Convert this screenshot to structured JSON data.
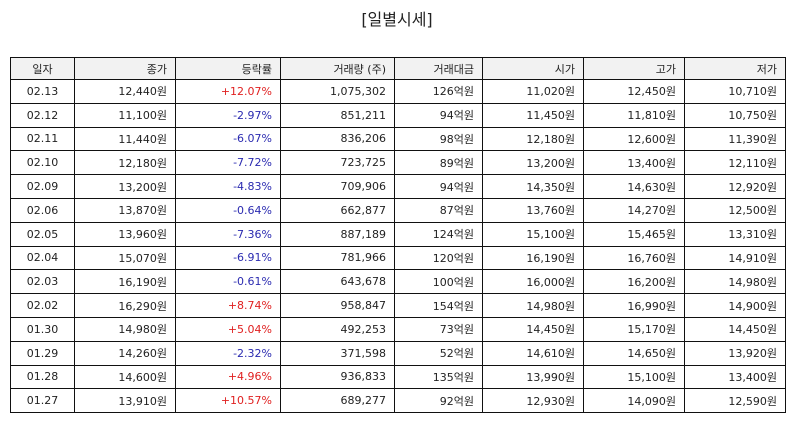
{
  "title": "[일별시세]",
  "table": {
    "headers": [
      "일자",
      "종가",
      "등락률",
      "거래량 (주)",
      "거래대금",
      "시가",
      "고가",
      "저가"
    ],
    "change_colors": {
      "up": "#e02020",
      "down": "#2a2ab0"
    },
    "rows": [
      [
        "02.13",
        "12,440원",
        "+12.07%",
        "1,075,302",
        "126억원",
        "11,020원",
        "12,450원",
        "10,710원"
      ],
      [
        "02.12",
        "11,100원",
        "-2.97%",
        "851,211",
        "94억원",
        "11,450원",
        "11,810원",
        "10,750원"
      ],
      [
        "02.11",
        "11,440원",
        "-6.07%",
        "836,206",
        "98억원",
        "12,180원",
        "12,600원",
        "11,390원"
      ],
      [
        "02.10",
        "12,180원",
        "-7.72%",
        "723,725",
        "89억원",
        "13,200원",
        "13,400원",
        "12,110원"
      ],
      [
        "02.09",
        "13,200원",
        "-4.83%",
        "709,906",
        "94억원",
        "14,350원",
        "14,630원",
        "12,920원"
      ],
      [
        "02.06",
        "13,870원",
        "-0.64%",
        "662,877",
        "87억원",
        "13,760원",
        "14,270원",
        "12,500원"
      ],
      [
        "02.05",
        "13,960원",
        "-7.36%",
        "887,189",
        "124억원",
        "15,100원",
        "15,465원",
        "13,310원"
      ],
      [
        "02.04",
        "15,070원",
        "-6.91%",
        "781,966",
        "120억원",
        "16,190원",
        "16,760원",
        "14,910원"
      ],
      [
        "02.03",
        "16,190원",
        "-0.61%",
        "643,678",
        "100억원",
        "16,000원",
        "16,200원",
        "14,980원"
      ],
      [
        "02.02",
        "16,290원",
        "+8.74%",
        "958,847",
        "154억원",
        "14,980원",
        "16,990원",
        "14,900원"
      ],
      [
        "01.30",
        "14,980원",
        "+5.04%",
        "492,253",
        "73억원",
        "14,450원",
        "15,170원",
        "14,450원"
      ],
      [
        "01.29",
        "14,260원",
        "-2.32%",
        "371,598",
        "52억원",
        "14,610원",
        "14,650원",
        "13,920원"
      ],
      [
        "01.28",
        "14,600원",
        "+4.96%",
        "936,833",
        "135억원",
        "13,990원",
        "15,100원",
        "13,400원"
      ],
      [
        "01.27",
        "13,910원",
        "+10.57%",
        "689,277",
        "92억원",
        "12,930원",
        "14,090원",
        "12,590원"
      ]
    ]
  }
}
